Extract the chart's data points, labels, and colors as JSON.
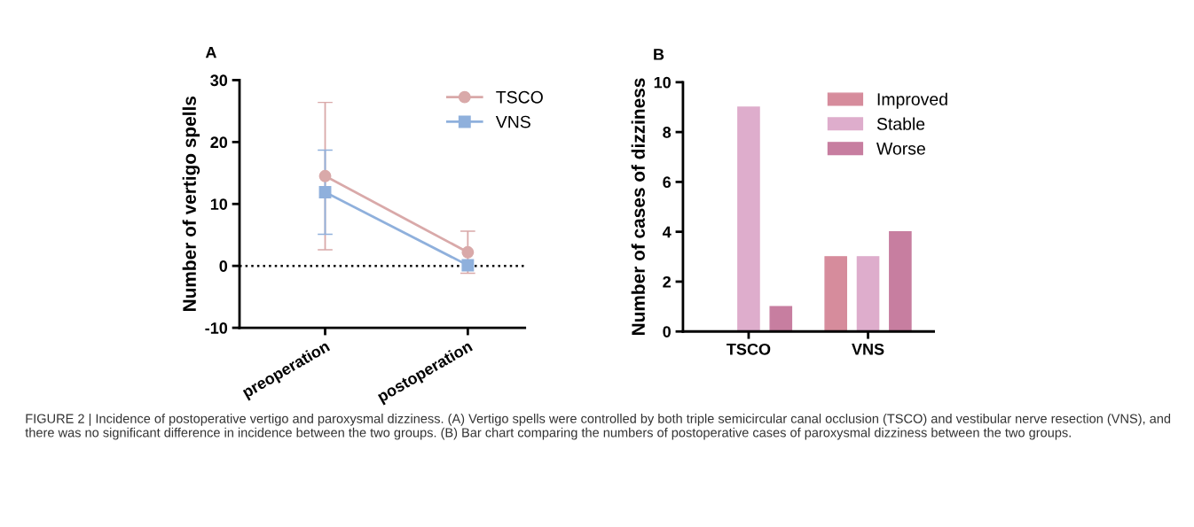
{
  "chart_data": [
    {
      "type": "line",
      "title": "A",
      "ylabel": "Number of vertigo spells",
      "categories": [
        "preoperation",
        "postoperation"
      ],
      "ylim": [
        -10,
        30
      ],
      "yticks": [
        -10,
        0,
        10,
        20,
        30
      ],
      "legend": "top right",
      "grid": false,
      "series": [
        {
          "name": "TSCO",
          "color": "#d9a9a9",
          "marker": "circle",
          "values": [
            14.5,
            2.2
          ],
          "errors": [
            11.9,
            3.4
          ]
        },
        {
          "name": "VNS",
          "color": "#8fb0dc",
          "marker": "square",
          "values": [
            11.9,
            0.1
          ],
          "errors": [
            6.8,
            null
          ]
        }
      ],
      "ref_lines": [
        {
          "axis": "y",
          "value": 0,
          "line_style": "dotted",
          "color": "#000000"
        }
      ],
      "annotations": [
        "FIGURE 2 | Incidence of postoperative vertigo and paroxysmal dizziness. (A) Vertigo spells were controlled by both triple semicircular canal occlusion (TSCO) and vestibular nerve resection (VNS), and there was no significant difference in incidence between the two groups. (B) Bar chart comparing the numbers of postoperative cases of paroxysmal dizziness between the two groups."
      ]
    },
    {
      "type": "bar",
      "title": "B",
      "ylabel": "Number of cases of dizziness",
      "categories": [
        "TSCO",
        "VNS"
      ],
      "ylim": [
        0,
        10
      ],
      "yticks": [
        0,
        2,
        4,
        6,
        8,
        10
      ],
      "legend": "top right",
      "grid": false,
      "series": [
        {
          "name": "Improved",
          "color": "#d68c9c",
          "values": [
            0,
            3
          ]
        },
        {
          "name": "Stable",
          "color": "#deadcc",
          "values": [
            9,
            3
          ]
        },
        {
          "name": "Worse",
          "color": "#c77ea0",
          "values": [
            1,
            4
          ]
        }
      ]
    }
  ]
}
